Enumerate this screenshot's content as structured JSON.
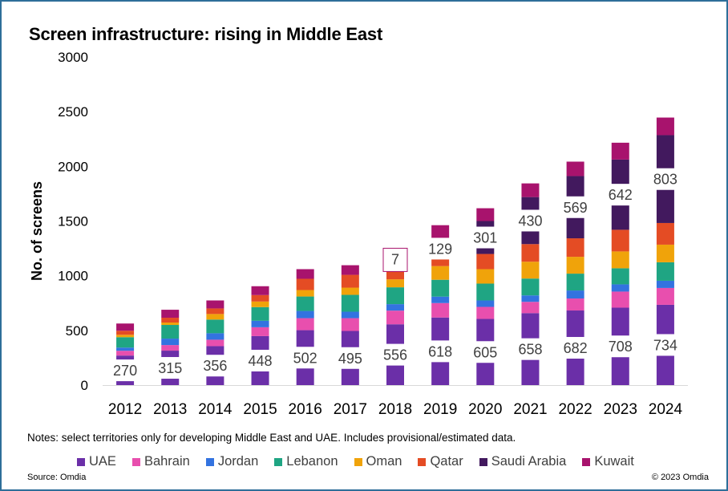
{
  "chart_data": {
    "type": "bar",
    "stacked": true,
    "title": "Screen infrastructure: rising in Middle East",
    "xlabel": "",
    "ylabel": "No. of screens",
    "ylim": [
      0,
      3000
    ],
    "yticks": [
      0,
      500,
      1000,
      1500,
      2000,
      2500,
      3000
    ],
    "grid": false,
    "legend_position": "bottom",
    "categories": [
      "2012",
      "2013",
      "2014",
      "2015",
      "2016",
      "2017",
      "2018",
      "2019",
      "2020",
      "2021",
      "2022",
      "2023",
      "2024"
    ],
    "series": [
      {
        "name": "UAE",
        "color": "#6b2fa8",
        "labeled": true,
        "values": [
          270,
          315,
          356,
          448,
          502,
          495,
          556,
          618,
          605,
          658,
          682,
          708,
          734
        ]
      },
      {
        "name": "Bahrain",
        "color": "#e84fae",
        "labeled": false,
        "values": [
          44,
          51,
          59,
          81,
          110,
          117,
          125,
          132,
          110,
          103,
          110,
          147,
          154
        ]
      },
      {
        "name": "Jordan",
        "color": "#3373e0",
        "labeled": false,
        "values": [
          29,
          59,
          59,
          59,
          66,
          59,
          59,
          59,
          59,
          59,
          73,
          66,
          66
        ]
      },
      {
        "name": "Lebanon",
        "color": "#1fa583",
        "labeled": false,
        "values": [
          95,
          125,
          125,
          125,
          132,
          154,
          154,
          154,
          154,
          154,
          154,
          147,
          169
        ]
      },
      {
        "name": "Oman",
        "color": "#f0a30a",
        "labeled": false,
        "values": [
          22,
          22,
          51,
          51,
          59,
          66,
          73,
          125,
          132,
          154,
          154,
          154,
          161
        ]
      },
      {
        "name": "Qatar",
        "color": "#e44c24",
        "labeled": false,
        "values": [
          37,
          44,
          51,
          59,
          103,
          117,
          134,
          95,
          139,
          161,
          169,
          198,
          198
        ]
      },
      {
        "name": "Saudi Arabia",
        "color": "#42195e",
        "labeled": true,
        "values": [
          0,
          0,
          0,
          0,
          0,
          0,
          7,
          129,
          301,
          430,
          569,
          642,
          803
        ]
      },
      {
        "name": "Kuwait",
        "color": "#a8136d",
        "labeled": false,
        "values": [
          66,
          73,
          73,
          81,
          88,
          88,
          88,
          150,
          117,
          125,
          132,
          154,
          161
        ]
      }
    ]
  },
  "notes": "Notes:  select territories only for developing Middle East and UAE. Includes provisional/estimated data.",
  "source": "Source: Omdia",
  "copyright": "© 2023 Omdia"
}
